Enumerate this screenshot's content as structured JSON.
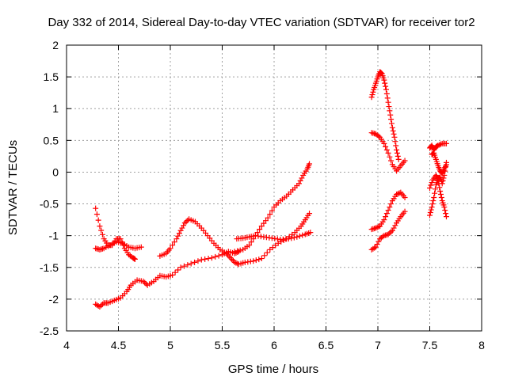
{
  "chart_data": {
    "type": "scatter",
    "title": "Day 332 of 2014, Sidereal Day-to-day VTEC variation (SDTVAR) for receiver tor2",
    "xlabel": "GPS time / hours",
    "ylabel": "SDTVAR / TECUs",
    "xlim": [
      4,
      8
    ],
    "ylim": [
      -2.5,
      2
    ],
    "xticks": [
      4,
      4.5,
      5,
      5.5,
      6,
      6.5,
      7,
      7.5,
      8
    ],
    "yticks": [
      -2.5,
      -2,
      -1.5,
      -1,
      -0.5,
      0,
      0.5,
      1,
      1.5,
      2
    ],
    "xtick_labels": [
      "4",
      "4.5",
      "5",
      "5.5",
      "6",
      "6.5",
      "7",
      "7.5",
      "8"
    ],
    "ytick_labels": [
      "-2.5",
      "-2",
      "-1.5",
      "-1",
      "-0.5",
      "0",
      "0.5",
      "1",
      "1.5",
      "2"
    ],
    "grid": true,
    "marker": "plus",
    "color": "#ff0000",
    "series": [
      {
        "points": [
          [
            4.28,
            -0.57
          ],
          [
            4.32,
            -0.85
          ],
          [
            4.36,
            -1.05
          ],
          [
            4.4,
            -1.15
          ],
          [
            4.44,
            -1.15
          ],
          [
            4.48,
            -1.05
          ],
          [
            4.52,
            -1.05
          ],
          [
            4.56,
            -1.2
          ],
          [
            4.6,
            -1.3
          ],
          [
            4.64,
            -1.35
          ],
          [
            4.66,
            -1.37
          ]
        ]
      },
      {
        "points": [
          [
            4.28,
            -1.2
          ],
          [
            4.32,
            -1.22
          ],
          [
            4.36,
            -1.2
          ],
          [
            4.42,
            -1.15
          ],
          [
            4.48,
            -1.1
          ],
          [
            4.54,
            -1.12
          ],
          [
            4.6,
            -1.18
          ],
          [
            4.66,
            -1.2
          ],
          [
            4.72,
            -1.18
          ]
        ]
      },
      {
        "points": [
          [
            4.28,
            -2.08
          ],
          [
            4.32,
            -2.12
          ],
          [
            4.36,
            -2.06
          ],
          [
            4.4,
            -2.06
          ],
          [
            4.46,
            -2.02
          ],
          [
            4.52,
            -1.98
          ],
          [
            4.58,
            -1.88
          ],
          [
            4.62,
            -1.78
          ],
          [
            4.68,
            -1.7
          ],
          [
            4.74,
            -1.72
          ],
          [
            4.78,
            -1.78
          ],
          [
            4.84,
            -1.72
          ],
          [
            4.9,
            -1.63
          ],
          [
            4.96,
            -1.65
          ],
          [
            5.02,
            -1.62
          ],
          [
            5.1,
            -1.5
          ],
          [
            5.2,
            -1.44
          ],
          [
            5.3,
            -1.38
          ],
          [
            5.4,
            -1.35
          ],
          [
            5.5,
            -1.3
          ],
          [
            5.56,
            -1.25
          ],
          [
            5.62,
            -1.28
          ],
          [
            5.66,
            -1.25
          ]
        ]
      },
      {
        "points": [
          [
            4.9,
            -1.32
          ],
          [
            4.96,
            -1.28
          ],
          [
            5.0,
            -1.2
          ],
          [
            5.06,
            -1.05
          ],
          [
            5.1,
            -0.92
          ],
          [
            5.14,
            -0.8
          ],
          [
            5.18,
            -0.74
          ],
          [
            5.24,
            -0.78
          ],
          [
            5.3,
            -0.88
          ],
          [
            5.36,
            -1.0
          ],
          [
            5.42,
            -1.12
          ],
          [
            5.48,
            -1.22
          ],
          [
            5.54,
            -1.28
          ],
          [
            5.58,
            -1.35
          ],
          [
            5.62,
            -1.42
          ],
          [
            5.66,
            -1.45
          ],
          [
            5.72,
            -1.42
          ],
          [
            5.8,
            -1.4
          ],
          [
            5.88,
            -1.36
          ],
          [
            5.96,
            -1.22
          ],
          [
            6.04,
            -1.12
          ],
          [
            6.12,
            -1.05
          ],
          [
            6.2,
            -0.95
          ],
          [
            6.26,
            -0.85
          ],
          [
            6.3,
            -0.75
          ],
          [
            6.34,
            -0.65
          ]
        ]
      },
      {
        "points": [
          [
            5.64,
            -1.05
          ],
          [
            5.7,
            -1.04
          ],
          [
            5.76,
            -1.02
          ],
          [
            5.82,
            -1.0
          ],
          [
            5.9,
            -1.02
          ],
          [
            5.98,
            -1.04
          ],
          [
            6.06,
            -1.06
          ],
          [
            6.14,
            -1.05
          ],
          [
            6.22,
            -1.02
          ],
          [
            6.3,
            -0.98
          ],
          [
            6.35,
            -0.95
          ]
        ]
      },
      {
        "points": [
          [
            5.62,
            -1.25
          ],
          [
            5.7,
            -1.22
          ],
          [
            5.76,
            -1.15
          ],
          [
            5.82,
            -1.0
          ],
          [
            5.88,
            -0.85
          ],
          [
            5.94,
            -0.72
          ],
          [
            6.0,
            -0.55
          ],
          [
            6.06,
            -0.45
          ],
          [
            6.12,
            -0.38
          ],
          [
            6.18,
            -0.28
          ],
          [
            6.24,
            -0.18
          ],
          [
            6.28,
            -0.05
          ],
          [
            6.32,
            0.05
          ],
          [
            6.34,
            0.13
          ]
        ]
      },
      {
        "points": [
          [
            6.94,
            -1.22
          ],
          [
            6.98,
            -1.18
          ],
          [
            7.02,
            -1.05
          ],
          [
            7.06,
            -1.0
          ],
          [
            7.1,
            -0.98
          ],
          [
            7.14,
            -0.92
          ],
          [
            7.18,
            -0.8
          ],
          [
            7.22,
            -0.7
          ],
          [
            7.26,
            -0.62
          ]
        ]
      },
      {
        "points": [
          [
            6.94,
            -0.9
          ],
          [
            6.98,
            -0.88
          ],
          [
            7.02,
            -0.85
          ],
          [
            7.06,
            -0.75
          ],
          [
            7.1,
            -0.6
          ],
          [
            7.14,
            -0.45
          ],
          [
            7.18,
            -0.35
          ],
          [
            7.22,
            -0.32
          ],
          [
            7.26,
            -0.4
          ]
        ]
      },
      {
        "points": [
          [
            6.94,
            0.62
          ],
          [
            6.98,
            0.6
          ],
          [
            7.02,
            0.55
          ],
          [
            7.06,
            0.45
          ],
          [
            7.1,
            0.3
          ],
          [
            7.14,
            0.12
          ],
          [
            7.18,
            0.02
          ],
          [
            7.22,
            0.1
          ],
          [
            7.26,
            0.18
          ]
        ]
      },
      {
        "points": [
          [
            6.94,
            1.18
          ],
          [
            6.96,
            1.3
          ],
          [
            6.98,
            1.4
          ],
          [
            7.0,
            1.5
          ],
          [
            7.02,
            1.58
          ],
          [
            7.04,
            1.55
          ],
          [
            7.06,
            1.45
          ],
          [
            7.08,
            1.3
          ],
          [
            7.1,
            1.1
          ],
          [
            7.12,
            0.9
          ],
          [
            7.14,
            0.7
          ],
          [
            7.16,
            0.55
          ],
          [
            7.18,
            0.35
          ],
          [
            7.2,
            0.2
          ]
        ]
      },
      {
        "points": [
          [
            7.5,
            -0.68
          ],
          [
            7.52,
            -0.55
          ],
          [
            7.54,
            -0.4
          ],
          [
            7.56,
            -0.2
          ],
          [
            7.58,
            -0.1
          ],
          [
            7.6,
            -0.08
          ],
          [
            7.62,
            -0.18
          ],
          [
            7.64,
            -0.05
          ],
          [
            7.66,
            0.15
          ]
        ]
      },
      {
        "points": [
          [
            7.5,
            0.38
          ],
          [
            7.52,
            0.42
          ],
          [
            7.54,
            0.35
          ],
          [
            7.56,
            0.4
          ],
          [
            7.58,
            0.42
          ],
          [
            7.62,
            0.45
          ],
          [
            7.66,
            0.45
          ]
        ]
      },
      {
        "points": [
          [
            7.5,
            -0.25
          ],
          [
            7.53,
            -0.12
          ],
          [
            7.56,
            -0.05
          ],
          [
            7.58,
            -0.12
          ],
          [
            7.6,
            -0.3
          ],
          [
            7.62,
            -0.45
          ],
          [
            7.64,
            -0.55
          ],
          [
            7.66,
            -0.7
          ]
        ]
      },
      {
        "points": [
          [
            7.52,
            0.28
          ],
          [
            7.54,
            0.3
          ],
          [
            7.56,
            0.2
          ],
          [
            7.58,
            0.1
          ],
          [
            7.6,
            0.02
          ],
          [
            7.62,
            -0.02
          ],
          [
            7.64,
            0.05
          ],
          [
            7.66,
            0.12
          ]
        ]
      }
    ]
  }
}
